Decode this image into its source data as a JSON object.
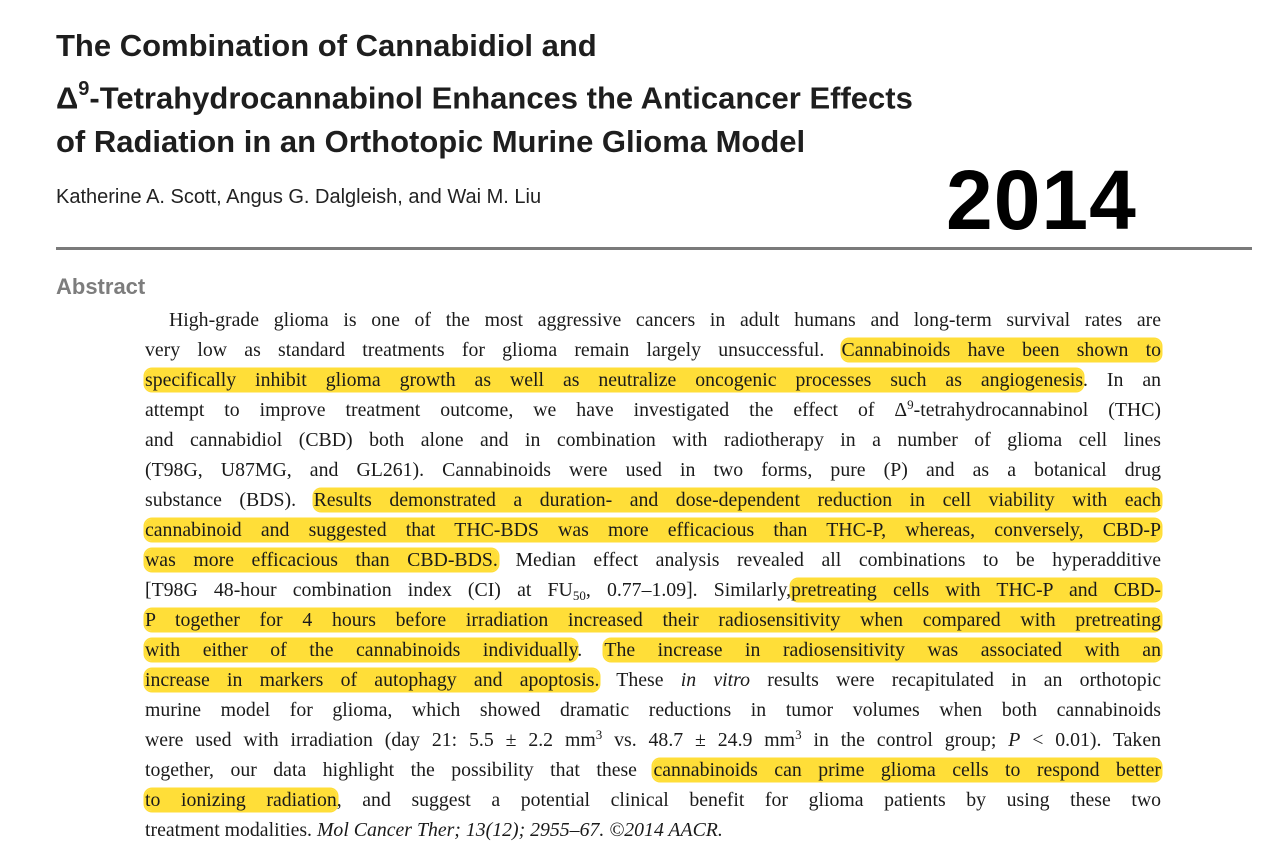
{
  "article": {
    "title": {
      "line1": "The Combination of Cannabidiol and",
      "line2_delta": "Δ",
      "line2_sup": "9",
      "line2_rest": "-Tetrahydrocannabinol Enhances the Anticancer Effects",
      "line3": "of Radiation in an Orthotopic Murine Glioma Model"
    },
    "authors": "Katherine A. Scott, Angus G. Dalgleish, and Wai M. Liu",
    "year_overlay": "2014",
    "abstract_heading": "Abstract"
  },
  "abstract_lines": {
    "l1": "High-grade glioma is one of the most aggressive cancers in adult humans and long-term survival rates are",
    "l2a": "very low as standard treatments for glioma remain largely unsuccessful.",
    "l2b": "Cannabinoids have been shown to",
    "l3a": "specifically inhibit glioma growth as well as neutralize oncogenic processes such as angiogenesis",
    "l3b": ". In an",
    "l4a": "attempt to improve treatment outcome, we have investigated the effect of Δ",
    "l4sup": "9",
    "l4b": "-tetrahydrocannabinol (THC)",
    "l5": "and cannabidiol (CBD) both alone and in combination with radiotherapy in a number of glioma cell lines",
    "l6": "(T98G, U87MG, and GL261). Cannabinoids were used in two forms, pure (P) and as a botanical drug",
    "l7a": "substance (BDS).",
    "l7b": "Results demonstrated a duration- and dose-dependent reduction in cell viability with each",
    "l8": "cannabinoid and suggested that THC-BDS was more efficacious than THC-P, whereas, conversely, CBD-P",
    "l9a": "was more efficacious than CBD-BDS.",
    "l9b": "Median effect analysis revealed all combinations to be hyperadditive",
    "l10a": "[T98G 48-hour combination index (CI) at FU",
    "l10sub": "50",
    "l10b": ", 0.77–1.09]. Similarly,",
    "l10c": "pretreating cells with THC-P and CBD-",
    "l11": "P together for 4 hours before irradiation increased their radiosensitivity when compared with pretreating",
    "l12a": "with either of the cannabinoids individually",
    "l12b": ".",
    "l12c": "The increase in radiosensitivity was associated with an",
    "l13a": "increase in markers of autophagy and apoptosis.",
    "l13b": "These",
    "l13c": "in vitro",
    "l13d": "results were recapitulated in an orthotopic",
    "l14": "murine model for glioma, which showed dramatic reductions in tumor volumes when both cannabinoids",
    "l15a": "were used with irradiation (day 21: 5.5 ± 2.2 mm",
    "l15sup1": "3",
    "l15b": " vs. 48.7 ± 24.9 mm",
    "l15sup2": "3",
    "l15c": " in the control group;",
    "l15d": "P",
    "l15e": "< 0.01). Taken",
    "l16a": "together, our data highlight the possibility that these",
    "l16b": "cannabinoids can prime glioma cells to respond better",
    "l17a": "to ionizing radiation",
    "l17b": ", and suggest a potential clinical benefit for glioma patients by using these two",
    "l18a": "treatment modalities.",
    "l18b": "Mol Cancer Ther; 13(12); 2955–67. ©2014 AACR."
  },
  "colors": {
    "highlight": "#ffde38",
    "heading_gray": "#7d7d7d",
    "rule_gray": "#7a7a7a"
  }
}
